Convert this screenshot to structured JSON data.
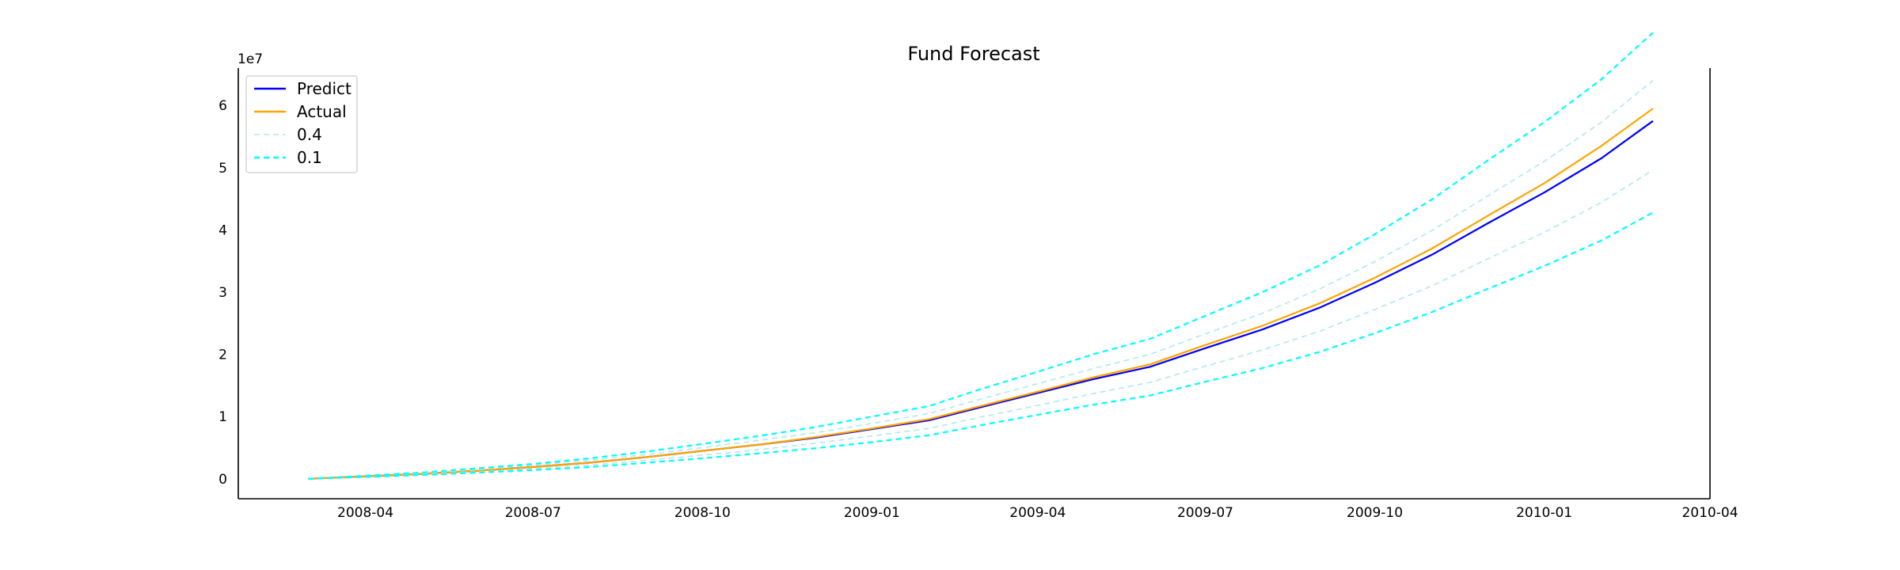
{
  "chart_data": {
    "type": "line",
    "title": "Fund Forecast",
    "xlabel": "",
    "ylabel": "",
    "y_offset_text": "1e7",
    "x_scale": "date",
    "xlim": [
      "2008-01-23",
      "2010-04-01"
    ],
    "ylim": [
      -0.32,
      6.6
    ],
    "x_ticks": [
      "2008-04",
      "2008-07",
      "2008-10",
      "2009-01",
      "2009-04",
      "2009-07",
      "2009-10",
      "2010-01",
      "2010-04"
    ],
    "y_ticks": [
      "0",
      "1",
      "2",
      "3",
      "4",
      "5",
      "6"
    ],
    "y_unit_multiplier": 10000000,
    "x": [
      "2008-03-01",
      "2008-04-01",
      "2008-05-01",
      "2008-06-01",
      "2008-07-01",
      "2008-08-01",
      "2008-09-01",
      "2008-10-01",
      "2008-11-01",
      "2008-12-01",
      "2009-01-01",
      "2009-02-01",
      "2009-03-01",
      "2009-04-01",
      "2009-05-01",
      "2009-06-01",
      "2009-07-01",
      "2009-08-01",
      "2009-09-01",
      "2009-10-01",
      "2009-11-01",
      "2009-12-01",
      "2010-01-01",
      "2010-02-01",
      "2010-03-01"
    ],
    "series": [
      {
        "name": "Predict",
        "color": "#0000ff",
        "style": "solid",
        "values": [
          0.0,
          0.04,
          0.08,
          0.13,
          0.19,
          0.26,
          0.35,
          0.45,
          0.55,
          0.66,
          0.8,
          0.94,
          1.15,
          1.38,
          1.6,
          1.8,
          2.1,
          2.4,
          2.75,
          3.15,
          3.6,
          4.1,
          4.6,
          5.15,
          5.75
        ]
      },
      {
        "name": "Actual",
        "color": "#ffa500",
        "style": "solid",
        "values": [
          0.0,
          0.04,
          0.08,
          0.13,
          0.19,
          0.26,
          0.35,
          0.45,
          0.55,
          0.67,
          0.81,
          0.96,
          1.17,
          1.4,
          1.63,
          1.84,
          2.15,
          2.46,
          2.82,
          3.23,
          3.7,
          4.22,
          4.75,
          5.35,
          5.95
        ]
      },
      {
        "name": "0.4",
        "color": "#b0e8f0",
        "style": "dashed",
        "bands": [
          {
            "values": [
              0.0,
              0.05,
              0.09,
              0.15,
              0.22,
              0.3,
              0.39,
              0.5,
              0.62,
              0.74,
              0.89,
              1.05,
              1.28,
              1.53,
              1.77,
              2.0,
              2.33,
              2.66,
              3.05,
              3.49,
              3.99,
              4.54,
              5.1,
              5.73,
              6.4
            ]
          },
          {
            "values": [
              0.0,
              0.03,
              0.07,
              0.11,
              0.16,
              0.22,
              0.3,
              0.38,
              0.47,
              0.57,
              0.69,
              0.81,
              0.99,
              1.18,
              1.37,
              1.55,
              1.81,
              2.07,
              2.37,
              2.72,
              3.1,
              3.53,
              3.96,
              4.44,
              4.96
            ]
          }
        ]
      },
      {
        "name": "0.1",
        "color": "#00ffff",
        "style": "dashed",
        "bands": [
          {
            "values": [
              0.0,
              0.05,
              0.1,
              0.17,
              0.24,
              0.33,
              0.44,
              0.56,
              0.69,
              0.83,
              1.0,
              1.17,
              1.44,
              1.72,
              2.0,
              2.25,
              2.62,
              3.0,
              3.43,
              3.93,
              4.49,
              5.11,
              5.73,
              6.42,
              7.17
            ]
          },
          {
            "values": [
              0.0,
              0.03,
              0.06,
              0.1,
              0.14,
              0.19,
              0.26,
              0.33,
              0.41,
              0.49,
              0.59,
              0.7,
              0.86,
              1.03,
              1.19,
              1.34,
              1.56,
              1.78,
              2.04,
              2.34,
              2.68,
              3.05,
              3.42,
              3.83,
              4.28
            ]
          }
        ]
      }
    ],
    "legend_position": "top-left",
    "grid": false
  }
}
